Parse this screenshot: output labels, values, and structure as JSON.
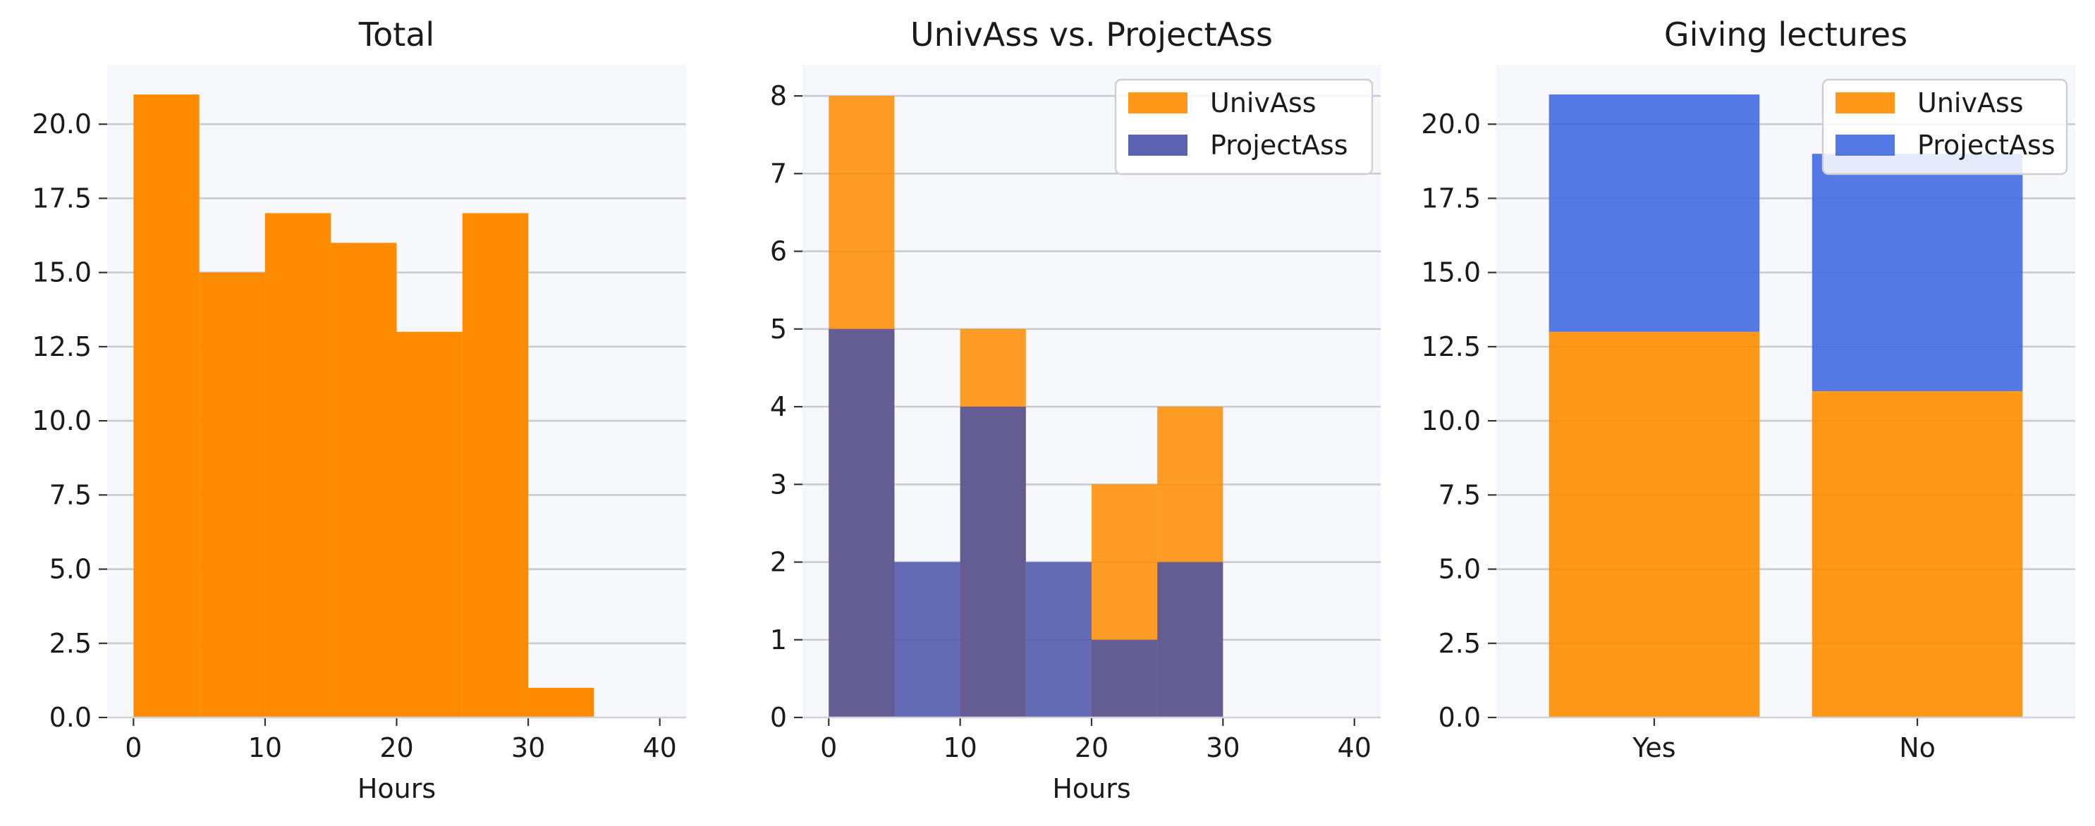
{
  "chart_data": [
    {
      "type": "bar",
      "title": "Total",
      "xlabel": "Hours",
      "ylabel": "",
      "bin_edges": [
        0,
        5,
        10,
        15,
        20,
        25,
        30,
        35
      ],
      "series": [
        {
          "values": [
            21,
            15,
            17,
            16,
            13,
            17,
            1
          ],
          "color": "#ff8c00"
        }
      ],
      "xlim": [
        -2,
        42
      ],
      "ylim": [
        0,
        22
      ],
      "xticks": [
        0,
        10,
        20,
        30,
        40
      ],
      "yticks": [
        0,
        2.5,
        5,
        7.5,
        10,
        12.5,
        15,
        17.5,
        20
      ],
      "ytick_labels": [
        "0.0",
        "2.5",
        "5.0",
        "7.5",
        "10.0",
        "12.5",
        "15.0",
        "17.5",
        "20.0"
      ],
      "grid": "y",
      "legend": null
    },
    {
      "type": "bar",
      "title": "UnivAss vs. ProjectAss",
      "xlabel": "Hours",
      "ylabel": "",
      "bin_edges": [
        0,
        5,
        10,
        15,
        20,
        25,
        30
      ],
      "series": [
        {
          "name": "UnivAss",
          "values": [
            8,
            0,
            5,
            0,
            3,
            4
          ],
          "color": "#ff8c00"
        },
        {
          "name": "ProjectAss",
          "values": [
            5,
            2,
            4,
            2,
            1,
            2
          ],
          "color": "#4952a8"
        }
      ],
      "xlim": [
        -2,
        42
      ],
      "ylim": [
        0,
        8.4
      ],
      "xticks": [
        0,
        10,
        20,
        30,
        40
      ],
      "yticks": [
        0,
        1,
        2,
        3,
        4,
        5,
        6,
        7,
        8
      ],
      "grid": "y",
      "legend": "top-right"
    },
    {
      "type": "bar",
      "title": "Giving lectures",
      "xlabel": "",
      "ylabel": "",
      "stacked": true,
      "categories": [
        "Yes",
        "No"
      ],
      "series": [
        {
          "name": "UnivAss",
          "values": [
            13,
            11
          ],
          "color": "#ff8c00"
        },
        {
          "name": "ProjectAss",
          "values": [
            8,
            8
          ],
          "color": "#4169e1"
        }
      ],
      "ylim": [
        0,
        22
      ],
      "yticks": [
        0,
        2.5,
        5,
        7.5,
        10,
        12.5,
        15,
        17.5,
        20
      ],
      "ytick_labels": [
        "0.0",
        "2.5",
        "5.0",
        "7.5",
        "10.0",
        "12.5",
        "15.0",
        "17.5",
        "20.0"
      ],
      "grid": "y",
      "legend": "top-right"
    }
  ]
}
